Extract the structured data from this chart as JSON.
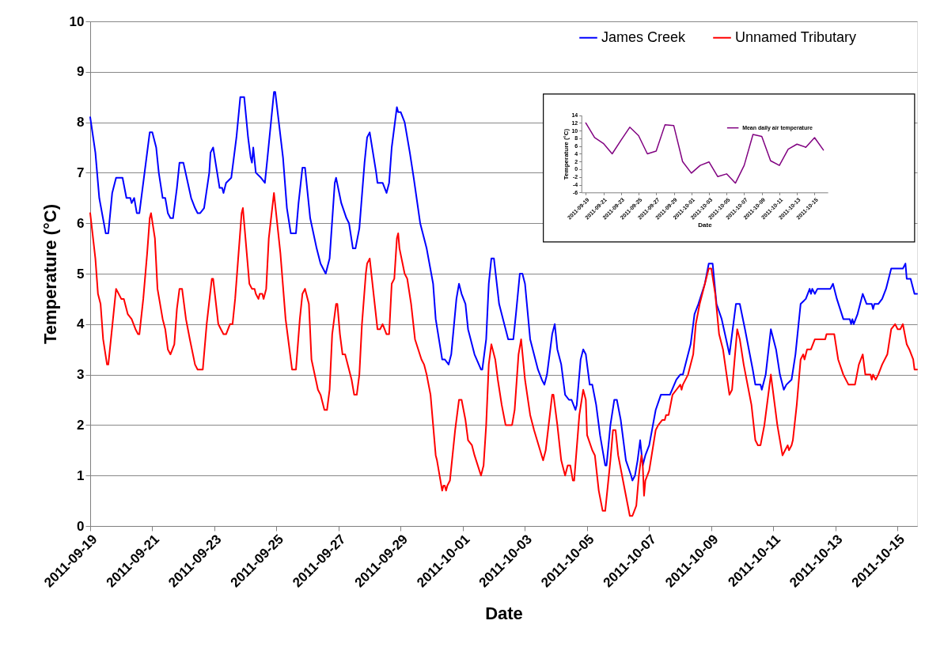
{
  "chart_data": [
    {
      "type": "line",
      "xlabel": "Date",
      "ylabel": "Temperature (°C)",
      "xlim": [
        "2011-09-19T00:00",
        "2011-10-15T15:00"
      ],
      "xticks": [
        "2011-09-19",
        "2011-09-21",
        "2011-09-23",
        "2011-09-25",
        "2011-09-27",
        "2011-09-29",
        "2011-10-01",
        "2011-10-03",
        "2011-10-05",
        "2011-10-07",
        "2011-10-09",
        "2011-10-11",
        "2011-10-13",
        "2011-10-15"
      ],
      "ylim": [
        0,
        10
      ],
      "yticks": [
        0,
        1,
        2,
        3,
        4,
        5,
        6,
        7,
        8,
        9,
        10
      ],
      "grid": "y",
      "legend": "top right",
      "line_style": "solid",
      "series": [
        {
          "name": "James Creek",
          "color": "#0000ff",
          "x": [
            "2011-09-19T00:00",
            "2011-09-19T04:00",
            "2011-09-19T07:00",
            "2011-09-19T12:00",
            "2011-09-19T14:00",
            "2011-09-19T17:00",
            "2011-09-19T20:00",
            "2011-09-20T01:00",
            "2011-09-20T04:00",
            "2011-09-20T07:00",
            "2011-09-20T08:00",
            "2011-09-20T10:00",
            "2011-09-20T12:00",
            "2011-09-20T14:00",
            "2011-09-20T22:00",
            "2011-09-21T00:00",
            "2011-09-21T03:00",
            "2011-09-21T05:00",
            "2011-09-21T08:00",
            "2011-09-21T10:00",
            "2011-09-21T12:00",
            "2011-09-21T14:00",
            "2011-09-21T16:00",
            "2011-09-21T19:00",
            "2011-09-21T21:00",
            "2011-09-22T00:00",
            "2011-09-22T06:00",
            "2011-09-22T09:00",
            "2011-09-22T11:00",
            "2011-09-22T13:00",
            "2011-09-22T16:00",
            "2011-09-22T20:00",
            "2011-09-22T21:00",
            "2011-09-22T23:00",
            "2011-09-23T04:00",
            "2011-09-23T06:00",
            "2011-09-23T07:00",
            "2011-09-23T09:00",
            "2011-09-23T13:00",
            "2011-09-23T15:00",
            "2011-09-23T17:00",
            "2011-09-23T20:00",
            "2011-09-23T23:00",
            "2011-09-24T02:00",
            "2011-09-24T04:00",
            "2011-09-24T05:00",
            "2011-09-24T06:00",
            "2011-09-24T08:00",
            "2011-09-24T12:00",
            "2011-09-24T15:00",
            "2011-09-24T17:00",
            "2011-09-24T22:00",
            "2011-09-24T23:00",
            "2011-09-25T05:00",
            "2011-09-25T08:00",
            "2011-09-25T11:00",
            "2011-09-25T15:00",
            "2011-09-25T17:00",
            "2011-09-25T20:00",
            "2011-09-25T22:00",
            "2011-09-26T02:00",
            "2011-09-26T07:00",
            "2011-09-26T10:00",
            "2011-09-26T14:00",
            "2011-09-26T17:00",
            "2011-09-26T21:00",
            "2011-09-26T22:00",
            "2011-09-27T02:00",
            "2011-09-27T06:00",
            "2011-09-27T08:00",
            "2011-09-27T11:00",
            "2011-09-27T13:00",
            "2011-09-27T16:00",
            "2011-09-27T20:00",
            "2011-09-27T22:00",
            "2011-09-28T00:00",
            "2011-09-28T05:00",
            "2011-09-28T06:00",
            "2011-09-28T10:00",
            "2011-09-28T13:00",
            "2011-09-28T15:00",
            "2011-09-28T17:00",
            "2011-09-28T21:00",
            "2011-09-28T22:00",
            "2011-09-29T00:00",
            "2011-09-29T03:00",
            "2011-09-29T07:00",
            "2011-09-29T10:00",
            "2011-09-29T15:00",
            "2011-09-29T18:00",
            "2011-09-29T20:00",
            "2011-09-30T01:00",
            "2011-09-30T03:00",
            "2011-09-30T08:00",
            "2011-09-30T10:00",
            "2011-09-30T13:00",
            "2011-09-30T15:00",
            "2011-09-30T19:00",
            "2011-09-30T21:00",
            "2011-09-30T23:00",
            "2011-10-01T02:00",
            "2011-10-01T04:00",
            "2011-10-01T09:00",
            "2011-10-01T14:00",
            "2011-10-01T15:00",
            "2011-10-01T18:00",
            "2011-10-01T20:00",
            "2011-10-01T22:00",
            "2011-10-02T00:00",
            "2011-10-02T04:00",
            "2011-10-02T07:00",
            "2011-10-02T10:00",
            "2011-10-02T11:00",
            "2011-10-02T15:00",
            "2011-10-02T17:00",
            "2011-10-02T20:00",
            "2011-10-02T22:00",
            "2011-10-03T00:00",
            "2011-10-03T04:00",
            "2011-10-03T10:00",
            "2011-10-03T13:00",
            "2011-10-03T15:00",
            "2011-10-03T17:00",
            "2011-10-03T21:00",
            "2011-10-03T23:00",
            "2011-10-04T01:00",
            "2011-10-04T04:00",
            "2011-10-04T07:00",
            "2011-10-04T10:00",
            "2011-10-04T12:00",
            "2011-10-04T15:00",
            "2011-10-04T16:00",
            "2011-10-04T19:00",
            "2011-10-04T21:00",
            "2011-10-04T23:00",
            "2011-10-05T02:00",
            "2011-10-05T04:00",
            "2011-10-05T07:00",
            "2011-10-05T10:00",
            "2011-10-05T14:00",
            "2011-10-05T15:00",
            "2011-10-05T18:00",
            "2011-10-05T21:00",
            "2011-10-05T23:00",
            "2011-10-06T02:00",
            "2011-10-06T06:00",
            "2011-10-06T10:00",
            "2011-10-06T11:00",
            "2011-10-06T13:00",
            "2011-10-06T15:00",
            "2011-10-06T17:00",
            "2011-10-06T19:00",
            "2011-10-06T21:00",
            "2011-10-07T00:00",
            "2011-10-07T05:00",
            "2011-10-07T09:00",
            "2011-10-07T16:00",
            "2011-10-07T21:00",
            "2011-10-08T00:00",
            "2011-10-08T02:00",
            "2011-10-08T08:00",
            "2011-10-08T11:00",
            "2011-10-08T14:00",
            "2011-10-08T19:00",
            "2011-10-08T22:00",
            "2011-10-09T01:00",
            "2011-10-09T04:00",
            "2011-10-09T08:00",
            "2011-10-09T14:00",
            "2011-10-09T19:00",
            "2011-10-09T22:00",
            "2011-10-10T02:00",
            "2011-10-10T08:00",
            "2011-10-10T10:00",
            "2011-10-10T14:00",
            "2011-10-10T15:00",
            "2011-10-10T18:00",
            "2011-10-10T22:00",
            "2011-10-11T02:00",
            "2011-10-11T05:00",
            "2011-10-11T08:00",
            "2011-10-11T10:00",
            "2011-10-11T14:00",
            "2011-10-11T17:00",
            "2011-10-11T21:00",
            "2011-10-12T01:00",
            "2011-10-12T04:00",
            "2011-10-12T05:00",
            "2011-10-12T06:00",
            "2011-10-12T08:00",
            "2011-10-12T10:00",
            "2011-10-12T20:00",
            "2011-10-12T22:00",
            "2011-10-13T01:00",
            "2011-10-13T06:00",
            "2011-10-13T11:00",
            "2011-10-13T12:00",
            "2011-10-13T13:00",
            "2011-10-13T14:00",
            "2011-10-13T17:00",
            "2011-10-13T21:00",
            "2011-10-14T00:00",
            "2011-10-14T04:00",
            "2011-10-14T05:00",
            "2011-10-14T06:00",
            "2011-10-14T09:00",
            "2011-10-14T12:00",
            "2011-10-14T15:00",
            "2011-10-14T19:00",
            "2011-10-15T04:00",
            "2011-10-15T06:00",
            "2011-10-15T07:00",
            "2011-10-15T10:00",
            "2011-10-15T13:00",
            "2011-10-15T15:00"
          ],
          "values": [
            8.1,
            7.4,
            6.5,
            5.8,
            5.8,
            6.6,
            6.9,
            6.9,
            6.5,
            6.5,
            6.4,
            6.5,
            6.2,
            6.2,
            7.8,
            7.8,
            7.5,
            7.0,
            6.5,
            6.5,
            6.2,
            6.1,
            6.1,
            6.7,
            7.2,
            7.2,
            6.5,
            6.3,
            6.2,
            6.2,
            6.3,
            7.0,
            7.4,
            7.5,
            6.7,
            6.7,
            6.6,
            6.8,
            6.9,
            7.3,
            7.7,
            8.5,
            8.5,
            7.7,
            7.3,
            7.2,
            7.5,
            7.0,
            6.9,
            6.8,
            7.3,
            8.6,
            8.6,
            7.3,
            6.3,
            5.8,
            5.8,
            6.4,
            7.1,
            7.1,
            6.1,
            5.5,
            5.2,
            5.0,
            5.3,
            6.8,
            6.9,
            6.4,
            6.1,
            6.0,
            5.5,
            5.5,
            5.9,
            7.2,
            7.7,
            7.8,
            7.0,
            6.8,
            6.8,
            6.6,
            6.8,
            7.5,
            8.3,
            8.2,
            8.2,
            8.0,
            7.4,
            6.9,
            6.0,
            5.7,
            5.5,
            4.8,
            4.1,
            3.3,
            3.3,
            3.2,
            3.4,
            4.5,
            4.8,
            4.6,
            4.4,
            3.9,
            3.4,
            3.1,
            3.1,
            3.7,
            4.8,
            5.3,
            5.3,
            4.4,
            4.1,
            3.8,
            3.7,
            3.7,
            4.2,
            5.0,
            5.0,
            4.8,
            3.7,
            3.1,
            2.9,
            2.8,
            3.0,
            3.8,
            4.0,
            3.5,
            3.2,
            2.6,
            2.5,
            2.5,
            2.3,
            2.4,
            3.3,
            3.5,
            3.4,
            2.8,
            2.8,
            2.4,
            1.8,
            1.2,
            1.2,
            2.0,
            2.5,
            2.5,
            2.1,
            1.3,
            1.0,
            0.9,
            1.0,
            1.3,
            1.7,
            1.2,
            1.4,
            1.6,
            2.3,
            2.6,
            2.6,
            2.9,
            3.0,
            3.0,
            3.6,
            4.2,
            4.4,
            4.8,
            5.2,
            5.2,
            4.4,
            4.1,
            3.4,
            4.4,
            4.4,
            3.9,
            3.1,
            2.8,
            2.8,
            2.7,
            3.0,
            3.9,
            3.5,
            3.0,
            2.7,
            2.8,
            2.9,
            3.4,
            4.4,
            4.5,
            4.7,
            4.6,
            4.7,
            4.6,
            4.7,
            4.7,
            4.8,
            4.5,
            4.1,
            4.1,
            4.0,
            4.1,
            4.0,
            4.2,
            4.6,
            4.4,
            4.4,
            4.3,
            4.4,
            4.4,
            4.5,
            4.7,
            5.1,
            5.1,
            5.2,
            4.9,
            4.9,
            4.6,
            4.6
          ]
        },
        {
          "name": "Unnamed Tributary",
          "color": "#ff0000",
          "x": [
            "2011-09-19T00:00",
            "2011-09-19T04:00",
            "2011-09-19T06:00",
            "2011-09-19T08:00",
            "2011-09-19T10:00",
            "2011-09-19T13:00",
            "2011-09-19T14:00",
            "2011-09-19T18:00",
            "2011-09-19T20:00",
            "2011-09-19T22:00",
            "2011-09-20T00:00",
            "2011-09-20T02:00",
            "2011-09-20T05:00",
            "2011-09-20T08:00",
            "2011-09-20T11:00",
            "2011-09-20T13:00",
            "2011-09-20T14:00",
            "2011-09-20T17:00",
            "2011-09-20T20:00",
            "2011-09-20T22:00",
            "2011-09-20T23:00",
            "2011-09-21T02:00",
            "2011-09-21T04:00",
            "2011-09-21T08:00",
            "2011-09-21T10:00",
            "2011-09-21T12:00",
            "2011-09-21T14:00",
            "2011-09-21T17:00",
            "2011-09-21T19:00",
            "2011-09-21T21:00",
            "2011-09-21T23:00",
            "2011-09-22T02:00",
            "2011-09-22T05:00",
            "2011-09-22T09:00",
            "2011-09-22T11:00",
            "2011-09-22T15:00",
            "2011-09-22T18:00",
            "2011-09-22T22:00",
            "2011-09-22T23:00",
            "2011-09-23T03:00",
            "2011-09-23T05:00",
            "2011-09-23T07:00",
            "2011-09-23T09:00",
            "2011-09-23T12:00",
            "2011-09-23T14:00",
            "2011-09-23T16:00",
            "2011-09-23T21:00",
            "2011-09-23T22:00",
            "2011-09-23T23:00",
            "2011-09-24T03:00",
            "2011-09-24T05:00",
            "2011-09-24T07:00",
            "2011-09-24T08:00",
            "2011-09-24T10:00",
            "2011-09-24T11:00",
            "2011-09-24T13:00",
            "2011-09-24T14:00",
            "2011-09-24T16:00",
            "2011-09-24T18:00",
            "2011-09-24T22:00",
            "2011-09-25T03:00",
            "2011-09-25T07:00",
            "2011-09-25T11:00",
            "2011-09-25T12:00",
            "2011-09-25T15:00",
            "2011-09-25T18:00",
            "2011-09-25T20:00",
            "2011-09-25T22:00",
            "2011-09-26T01:00",
            "2011-09-26T03:00",
            "2011-09-26T08:00",
            "2011-09-26T10:00",
            "2011-09-26T13:00",
            "2011-09-26T15:00",
            "2011-09-26T17:00",
            "2011-09-26T19:00",
            "2011-09-26T22:00",
            "2011-09-26T23:00",
            "2011-09-27T01:00",
            "2011-09-27T03:00",
            "2011-09-27T05:00",
            "2011-09-27T08:00",
            "2011-09-27T10:00",
            "2011-09-27T12:00",
            "2011-09-27T14:00",
            "2011-09-27T16:00",
            "2011-09-27T18:00",
            "2011-09-27T21:00",
            "2011-09-27T22:00",
            "2011-09-28T00:00",
            "2011-09-28T03:00",
            "2011-09-28T06:00",
            "2011-09-28T08:00",
            "2011-09-28T10:00",
            "2011-09-28T13:00",
            "2011-09-28T15:00",
            "2011-09-28T17:00",
            "2011-09-28T19:00",
            "2011-09-28T21:00",
            "2011-09-28T22:00",
            "2011-09-28T23:00",
            "2011-09-29T03:00",
            "2011-09-29T05:00",
            "2011-09-29T08:00",
            "2011-09-29T11:00",
            "2011-09-29T16:00",
            "2011-09-29T18:00",
            "2011-09-29T20:00",
            "2011-09-29T23:00",
            "2011-09-30T03:00",
            "2011-09-30T04:00",
            "2011-09-30T08:00",
            "2011-09-30T09:00",
            "2011-09-30T10:00",
            "2011-09-30T11:00",
            "2011-09-30T12:00",
            "2011-09-30T14:00",
            "2011-09-30T18:00",
            "2011-09-30T21:00",
            "2011-09-30T23:00",
            "2011-10-01T02:00",
            "2011-10-01T04:00",
            "2011-10-01T07:00",
            "2011-10-01T09:00",
            "2011-10-01T14:00",
            "2011-10-01T16:00",
            "2011-10-01T18:00",
            "2011-10-01T20:00",
            "2011-10-01T22:00",
            "2011-10-02T01:00",
            "2011-10-02T03:00",
            "2011-10-02T06:00",
            "2011-10-02T09:00",
            "2011-10-02T14:00",
            "2011-10-02T16:00",
            "2011-10-02T19:00",
            "2011-10-02T21:00",
            "2011-10-03T00:00",
            "2011-10-03T04:00",
            "2011-10-03T07:00",
            "2011-10-03T14:00",
            "2011-10-03T16:00",
            "2011-10-03T21:00",
            "2011-10-03T22:00",
            "2011-10-04T01:00",
            "2011-10-04T04:00",
            "2011-10-04T07:00",
            "2011-10-04T09:00",
            "2011-10-04T11:00",
            "2011-10-04T13:00",
            "2011-10-04T14:00",
            "2011-10-04T18:00",
            "2011-10-04T21:00",
            "2011-10-04T23:00",
            "2011-10-05T00:00",
            "2011-10-05T04:00",
            "2011-10-05T06:00",
            "2011-10-05T09:00",
            "2011-10-05T12:00",
            "2011-10-05T14:00",
            "2011-10-05T18:00",
            "2011-10-05T20:00",
            "2011-10-05T22:00",
            "2011-10-06T00:00",
            "2011-10-06T03:00",
            "2011-10-06T09:00",
            "2011-10-06T11:00",
            "2011-10-06T14:00",
            "2011-10-06T16:00",
            "2011-10-06T18:00",
            "2011-10-06T19:00",
            "2011-10-06T20:00",
            "2011-10-06T21:00",
            "2011-10-07T00:00",
            "2011-10-07T05:00",
            "2011-10-07T07:00",
            "2011-10-07T10:00",
            "2011-10-07T12:00",
            "2011-10-07T13:00",
            "2011-10-07T15:00",
            "2011-10-07T18:00",
            "2011-10-07T21:00",
            "2011-10-08T00:00",
            "2011-10-08T01:00",
            "2011-10-08T02:00",
            "2011-10-08T06:00",
            "2011-10-08T10:00",
            "2011-10-08T12:00",
            "2011-10-08T15:00",
            "2011-10-08T18:00",
            "2011-10-08T22:00",
            "2011-10-09T00:00",
            "2011-10-09T03:00",
            "2011-10-09T06:00",
            "2011-10-09T09:00",
            "2011-10-09T14:00",
            "2011-10-09T16:00",
            "2011-10-09T20:00",
            "2011-10-09T22:00",
            "2011-10-10T01:00",
            "2011-10-10T07:00",
            "2011-10-10T10:00",
            "2011-10-10T12:00",
            "2011-10-10T14:00",
            "2011-10-10T17:00",
            "2011-10-10T22:00",
            "2011-10-11T03:00",
            "2011-10-11T07:00",
            "2011-10-11T09:00",
            "2011-10-11T11:00",
            "2011-10-11T12:00",
            "2011-10-11T14:00",
            "2011-10-11T15:00",
            "2011-10-11T18:00",
            "2011-10-11T21:00",
            "2011-10-11T23:00",
            "2011-10-12T00:00",
            "2011-10-12T02:00",
            "2011-10-12T05:00",
            "2011-10-12T08:00",
            "2011-10-12T16:00",
            "2011-10-12T17:00",
            "2011-10-12T23:00",
            "2011-10-13T02:00",
            "2011-10-13T06:00",
            "2011-10-13T10:00",
            "2011-10-13T15:00",
            "2011-10-13T18:00",
            "2011-10-13T21:00",
            "2011-10-13T23:00",
            "2011-10-14T03:00",
            "2011-10-14T04:00",
            "2011-10-14T05:00",
            "2011-10-14T07:00",
            "2011-10-14T09:00",
            "2011-10-14T12:00",
            "2011-10-14T16:00",
            "2011-10-14T19:00",
            "2011-10-14T22:00",
            "2011-10-15T00:00",
            "2011-10-15T02:00",
            "2011-10-15T04:00",
            "2011-10-15T07:00",
            "2011-10-15T09:00",
            "2011-10-15T12:00",
            "2011-10-15T13:00",
            "2011-10-15T15:00"
          ],
          "values": [
            6.2,
            5.3,
            4.6,
            4.4,
            3.7,
            3.2,
            3.2,
            4.2,
            4.7,
            4.6,
            4.5,
            4.5,
            4.2,
            4.1,
            3.9,
            3.8,
            3.8,
            4.5,
            5.4,
            6.1,
            6.2,
            5.7,
            4.7,
            4.1,
            3.9,
            3.5,
            3.4,
            3.6,
            4.3,
            4.7,
            4.7,
            4.1,
            3.7,
            3.2,
            3.1,
            3.1,
            4.0,
            4.9,
            4.9,
            4.0,
            3.9,
            3.8,
            3.8,
            4.0,
            4.0,
            4.5,
            6.2,
            6.3,
            6.0,
            4.8,
            4.7,
            4.7,
            4.6,
            4.5,
            4.6,
            4.6,
            4.5,
            4.7,
            5.7,
            6.6,
            5.4,
            4.1,
            3.3,
            3.1,
            3.1,
            4.1,
            4.6,
            4.7,
            4.4,
            3.3,
            2.7,
            2.6,
            2.3,
            2.3,
            2.7,
            3.8,
            4.4,
            4.4,
            3.8,
            3.4,
            3.4,
            3.1,
            2.9,
            2.6,
            2.6,
            3.0,
            4.0,
            5.0,
            5.2,
            5.3,
            4.6,
            3.9,
            3.9,
            4.0,
            3.8,
            3.8,
            4.8,
            4.9,
            5.7,
            5.8,
            5.5,
            5.0,
            4.9,
            4.4,
            3.7,
            3.3,
            3.2,
            3.0,
            2.6,
            1.4,
            1.3,
            0.7,
            0.8,
            0.8,
            0.7,
            0.8,
            0.9,
            1.9,
            2.5,
            2.5,
            2.1,
            1.7,
            1.6,
            1.4,
            1.0,
            1.2,
            2.0,
            3.2,
            3.6,
            3.3,
            2.9,
            2.4,
            2.0,
            2.0,
            2.3,
            3.4,
            3.7,
            2.9,
            2.2,
            1.9,
            1.3,
            1.5,
            2.6,
            2.6,
            2.0,
            1.3,
            1.0,
            1.2,
            1.2,
            0.9,
            0.9,
            2.2,
            2.7,
            2.5,
            1.8,
            1.5,
            1.4,
            0.7,
            0.3,
            0.3,
            1.3,
            1.9,
            1.9,
            1.4,
            1.0,
            0.2,
            0.2,
            0.4,
            1.0,
            1.4,
            1.2,
            0.6,
            0.9,
            1.1,
            1.9,
            2.0,
            2.1,
            2.1,
            2.2,
            2.2,
            2.6,
            2.7,
            2.8,
            2.7,
            2.8,
            3.0,
            3.4,
            4.0,
            4.4,
            4.7,
            5.1,
            5.1,
            4.6,
            3.8,
            3.5,
            2.6,
            2.7,
            3.9,
            3.7,
            3.2,
            2.4,
            1.7,
            1.6,
            1.6,
            2.0,
            3.0,
            2.0,
            1.4,
            1.5,
            1.6,
            1.5,
            1.6,
            1.7,
            2.4,
            3.3,
            3.4,
            3.3,
            3.5,
            3.5,
            3.7,
            3.7,
            3.8,
            3.8,
            3.3,
            3.0,
            2.8,
            2.8,
            3.2,
            3.4,
            3.0,
            3.0,
            2.9,
            3.0,
            2.9,
            3.0,
            3.2,
            3.4,
            3.9,
            4.0,
            3.9,
            3.9,
            4.0,
            3.6,
            3.5,
            3.3,
            3.1,
            3.1
          ]
        }
      ]
    },
    {
      "type": "line",
      "xlabel": "Date",
      "ylabel": "Temperature (°C)",
      "xlim": [
        "2011-09-18T12:00",
        "2011-10-16T12:00"
      ],
      "xticks": [
        "2011-09-19",
        "2011-09-21",
        "2011-09-23",
        "2011-09-25",
        "2011-09-27",
        "2011-09-29",
        "2011-10-01",
        "2011-10-03",
        "2011-10-05",
        "2011-10-07",
        "2011-10-09",
        "2011-10-11",
        "2011-10-13",
        "2011-10-15"
      ],
      "ylim": [
        -6,
        14
      ],
      "yticks": [
        -6,
        -4,
        -2,
        0,
        2,
        4,
        6,
        8,
        10,
        12,
        14
      ],
      "legend": "top right",
      "line_style": "solid",
      "series": [
        {
          "name": "Mean daily air temperature",
          "color": "#800080",
          "x": [
            "2011-09-19",
            "2011-09-20",
            "2011-09-21",
            "2011-09-22",
            "2011-09-23",
            "2011-09-24",
            "2011-09-25",
            "2011-09-26",
            "2011-09-27",
            "2011-09-28",
            "2011-09-29",
            "2011-09-30",
            "2011-10-01",
            "2011-10-02",
            "2011-10-03",
            "2011-10-04",
            "2011-10-05",
            "2011-10-06",
            "2011-10-07",
            "2011-10-08",
            "2011-10-09",
            "2011-10-10",
            "2011-10-11",
            "2011-10-12",
            "2011-10-13",
            "2011-10-14",
            "2011-10-15",
            "2011-10-16"
          ],
          "values": [
            12.0,
            8.2,
            6.7,
            4.0,
            7.5,
            10.9,
            8.7,
            4.0,
            4.7,
            11.5,
            11.3,
            2.0,
            -1.0,
            1.0,
            1.9,
            -1.9,
            -1.2,
            -3.6,
            1.0,
            9.0,
            8.5,
            2.2,
            1.0,
            5.2,
            6.5,
            5.7,
            8.2,
            5.0
          ]
        }
      ]
    }
  ]
}
